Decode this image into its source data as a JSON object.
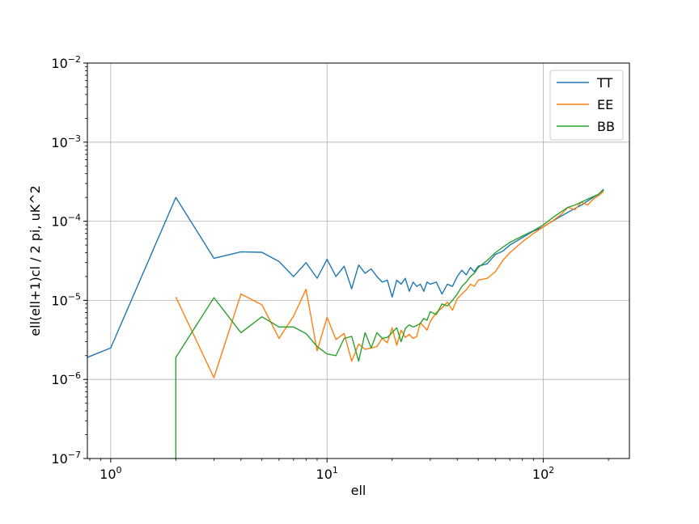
{
  "chart_data": {
    "type": "line",
    "xscale": "log",
    "yscale": "log",
    "xlim": [
      0.78,
      250
    ],
    "ylim": [
      1e-07,
      0.01
    ],
    "xlabel": "ell",
    "ylabel": "ell(ell+1)cl / 2 pi, uK^2",
    "grid": true,
    "legend": {
      "position": "top-right"
    },
    "x_ticks": [
      {
        "value": 1,
        "base": "10",
        "exp": "0"
      },
      {
        "value": 10,
        "base": "10",
        "exp": "1"
      },
      {
        "value": 100,
        "base": "10",
        "exp": "2"
      }
    ],
    "y_ticks": [
      {
        "value": 1e-07,
        "base": "10",
        "exp": "−7"
      },
      {
        "value": 1e-06,
        "base": "10",
        "exp": "−6"
      },
      {
        "value": 1e-05,
        "base": "10",
        "exp": "−5"
      },
      {
        "value": 0.0001,
        "base": "10",
        "exp": "−4"
      },
      {
        "value": 0.001,
        "base": "10",
        "exp": "−3"
      },
      {
        "value": 0.01,
        "base": "10",
        "exp": "−2"
      }
    ],
    "series": [
      {
        "name": "TT",
        "color": "#1f77b4",
        "x": [
          0.78,
          1,
          2,
          3,
          4,
          5,
          6,
          7,
          8,
          9,
          10,
          11,
          12,
          13,
          14,
          15,
          16,
          17,
          18,
          19,
          20,
          21,
          22,
          23,
          24,
          25,
          26,
          27,
          28,
          29,
          30,
          32,
          34,
          36,
          38,
          40,
          42,
          44,
          46,
          48,
          50,
          55,
          60,
          65,
          70,
          80,
          90,
          100,
          110,
          120,
          130,
          140,
          150,
          160,
          170,
          180,
          190
        ],
        "y": [
          1.9e-06,
          2.5e-06,
          0.0002,
          3.4e-05,
          4.1e-05,
          4.05e-05,
          3.1e-05,
          2e-05,
          3e-05,
          1.9e-05,
          3.3e-05,
          2e-05,
          2.7e-05,
          1.4e-05,
          2.8e-05,
          2.2e-05,
          2.5e-05,
          2e-05,
          1.7e-05,
          1.8e-05,
          1.1e-05,
          1.8e-05,
          1.6e-05,
          1.9e-05,
          1.3e-05,
          1.7e-05,
          1.5e-05,
          1.6e-05,
          1.3e-05,
          1.7e-05,
          1.6e-05,
          1.7e-05,
          1.2e-05,
          1.6e-05,
          1.5e-05,
          2e-05,
          2.4e-05,
          2.1e-05,
          2.6e-05,
          2.3e-05,
          2.7e-05,
          2.9e-05,
          3.8e-05,
          4.2e-05,
          5e-05,
          6.2e-05,
          7.5e-05,
          8.5e-05,
          0.0001,
          0.000115,
          0.00013,
          0.000145,
          0.00016,
          0.00018,
          0.0002,
          0.00022,
          0.000255
        ]
      },
      {
        "name": "EE",
        "color": "#ff7f0e",
        "x": [
          2,
          3,
          4,
          5,
          6,
          7,
          8,
          9,
          10,
          11,
          12,
          13,
          14,
          15,
          16,
          17,
          18,
          19,
          20,
          21,
          22,
          23,
          24,
          25,
          26,
          27,
          28,
          29,
          30,
          32,
          34,
          36,
          38,
          40,
          42,
          44,
          46,
          48,
          50,
          55,
          60,
          65,
          70,
          80,
          90,
          100,
          110,
          120,
          130,
          140,
          150,
          160,
          170,
          180,
          190
        ],
        "y": [
          1.1e-05,
          1.05e-06,
          1.2e-05,
          8.8e-06,
          3.3e-06,
          6.3e-06,
          1.38e-05,
          2.3e-06,
          6.1e-06,
          3.2e-06,
          3.8e-06,
          1.7e-06,
          2.8e-06,
          2.4e-06,
          2.5e-06,
          2.6e-06,
          3.3e-06,
          2.9e-06,
          4.5e-06,
          2.7e-06,
          4.2e-06,
          3.4e-06,
          3.7e-06,
          3.3e-06,
          3.5e-06,
          5.2e-06,
          4.7e-06,
          4.2e-06,
          5.4e-06,
          7e-06,
          8e-06,
          9.5e-06,
          7.5e-06,
          1.05e-05,
          1.2e-05,
          1.35e-05,
          1.6e-05,
          1.5e-05,
          1.8e-05,
          1.9e-05,
          2.3e-05,
          3.2e-05,
          4e-05,
          5.5e-05,
          7e-05,
          8.5e-05,
          0.0001,
          0.00012,
          0.00015,
          0.00014,
          0.000175,
          0.00016,
          0.00019,
          0.00021,
          0.00024
        ]
      },
      {
        "name": "BB",
        "color": "#2ca02c",
        "x": [
          2,
          2,
          3,
          4,
          5,
          6,
          7,
          8,
          9,
          10,
          11,
          12,
          13,
          14,
          15,
          16,
          17,
          18,
          19,
          20,
          21,
          22,
          23,
          24,
          25,
          26,
          27,
          28,
          29,
          30,
          32,
          34,
          36,
          38,
          40,
          42,
          44,
          46,
          48,
          50,
          55,
          60,
          65,
          70,
          80,
          90,
          100,
          110,
          120,
          130,
          140,
          150,
          160,
          170,
          180,
          190
        ],
        "y": [
          1e-07,
          1.9e-06,
          1.08e-05,
          3.9e-06,
          6.2e-06,
          4.6e-06,
          4.6e-06,
          3.8e-06,
          2.6e-06,
          2.1e-06,
          2e-06,
          3.3e-06,
          3.5e-06,
          1.7e-06,
          3.9e-06,
          2.5e-06,
          3.9e-06,
          3.3e-06,
          3.4e-06,
          3.9e-06,
          4.5e-06,
          3e-06,
          4.4e-06,
          4.9e-06,
          4.6e-06,
          4.8e-06,
          5.1e-06,
          5.9e-06,
          5.6e-06,
          7.2e-06,
          6.6e-06,
          9e-06,
          8.5e-06,
          1e-05,
          1.2e-05,
          1.5e-05,
          1.7e-05,
          2e-05,
          2.2e-05,
          2.6e-05,
          3.2e-05,
          4e-05,
          4.7e-05,
          5.4e-05,
          6.5e-05,
          7.6e-05,
          9e-05,
          0.00011,
          0.00013,
          0.00015,
          0.00016,
          0.000175,
          0.00019,
          0.000205,
          0.00022,
          0.00025
        ]
      }
    ]
  }
}
